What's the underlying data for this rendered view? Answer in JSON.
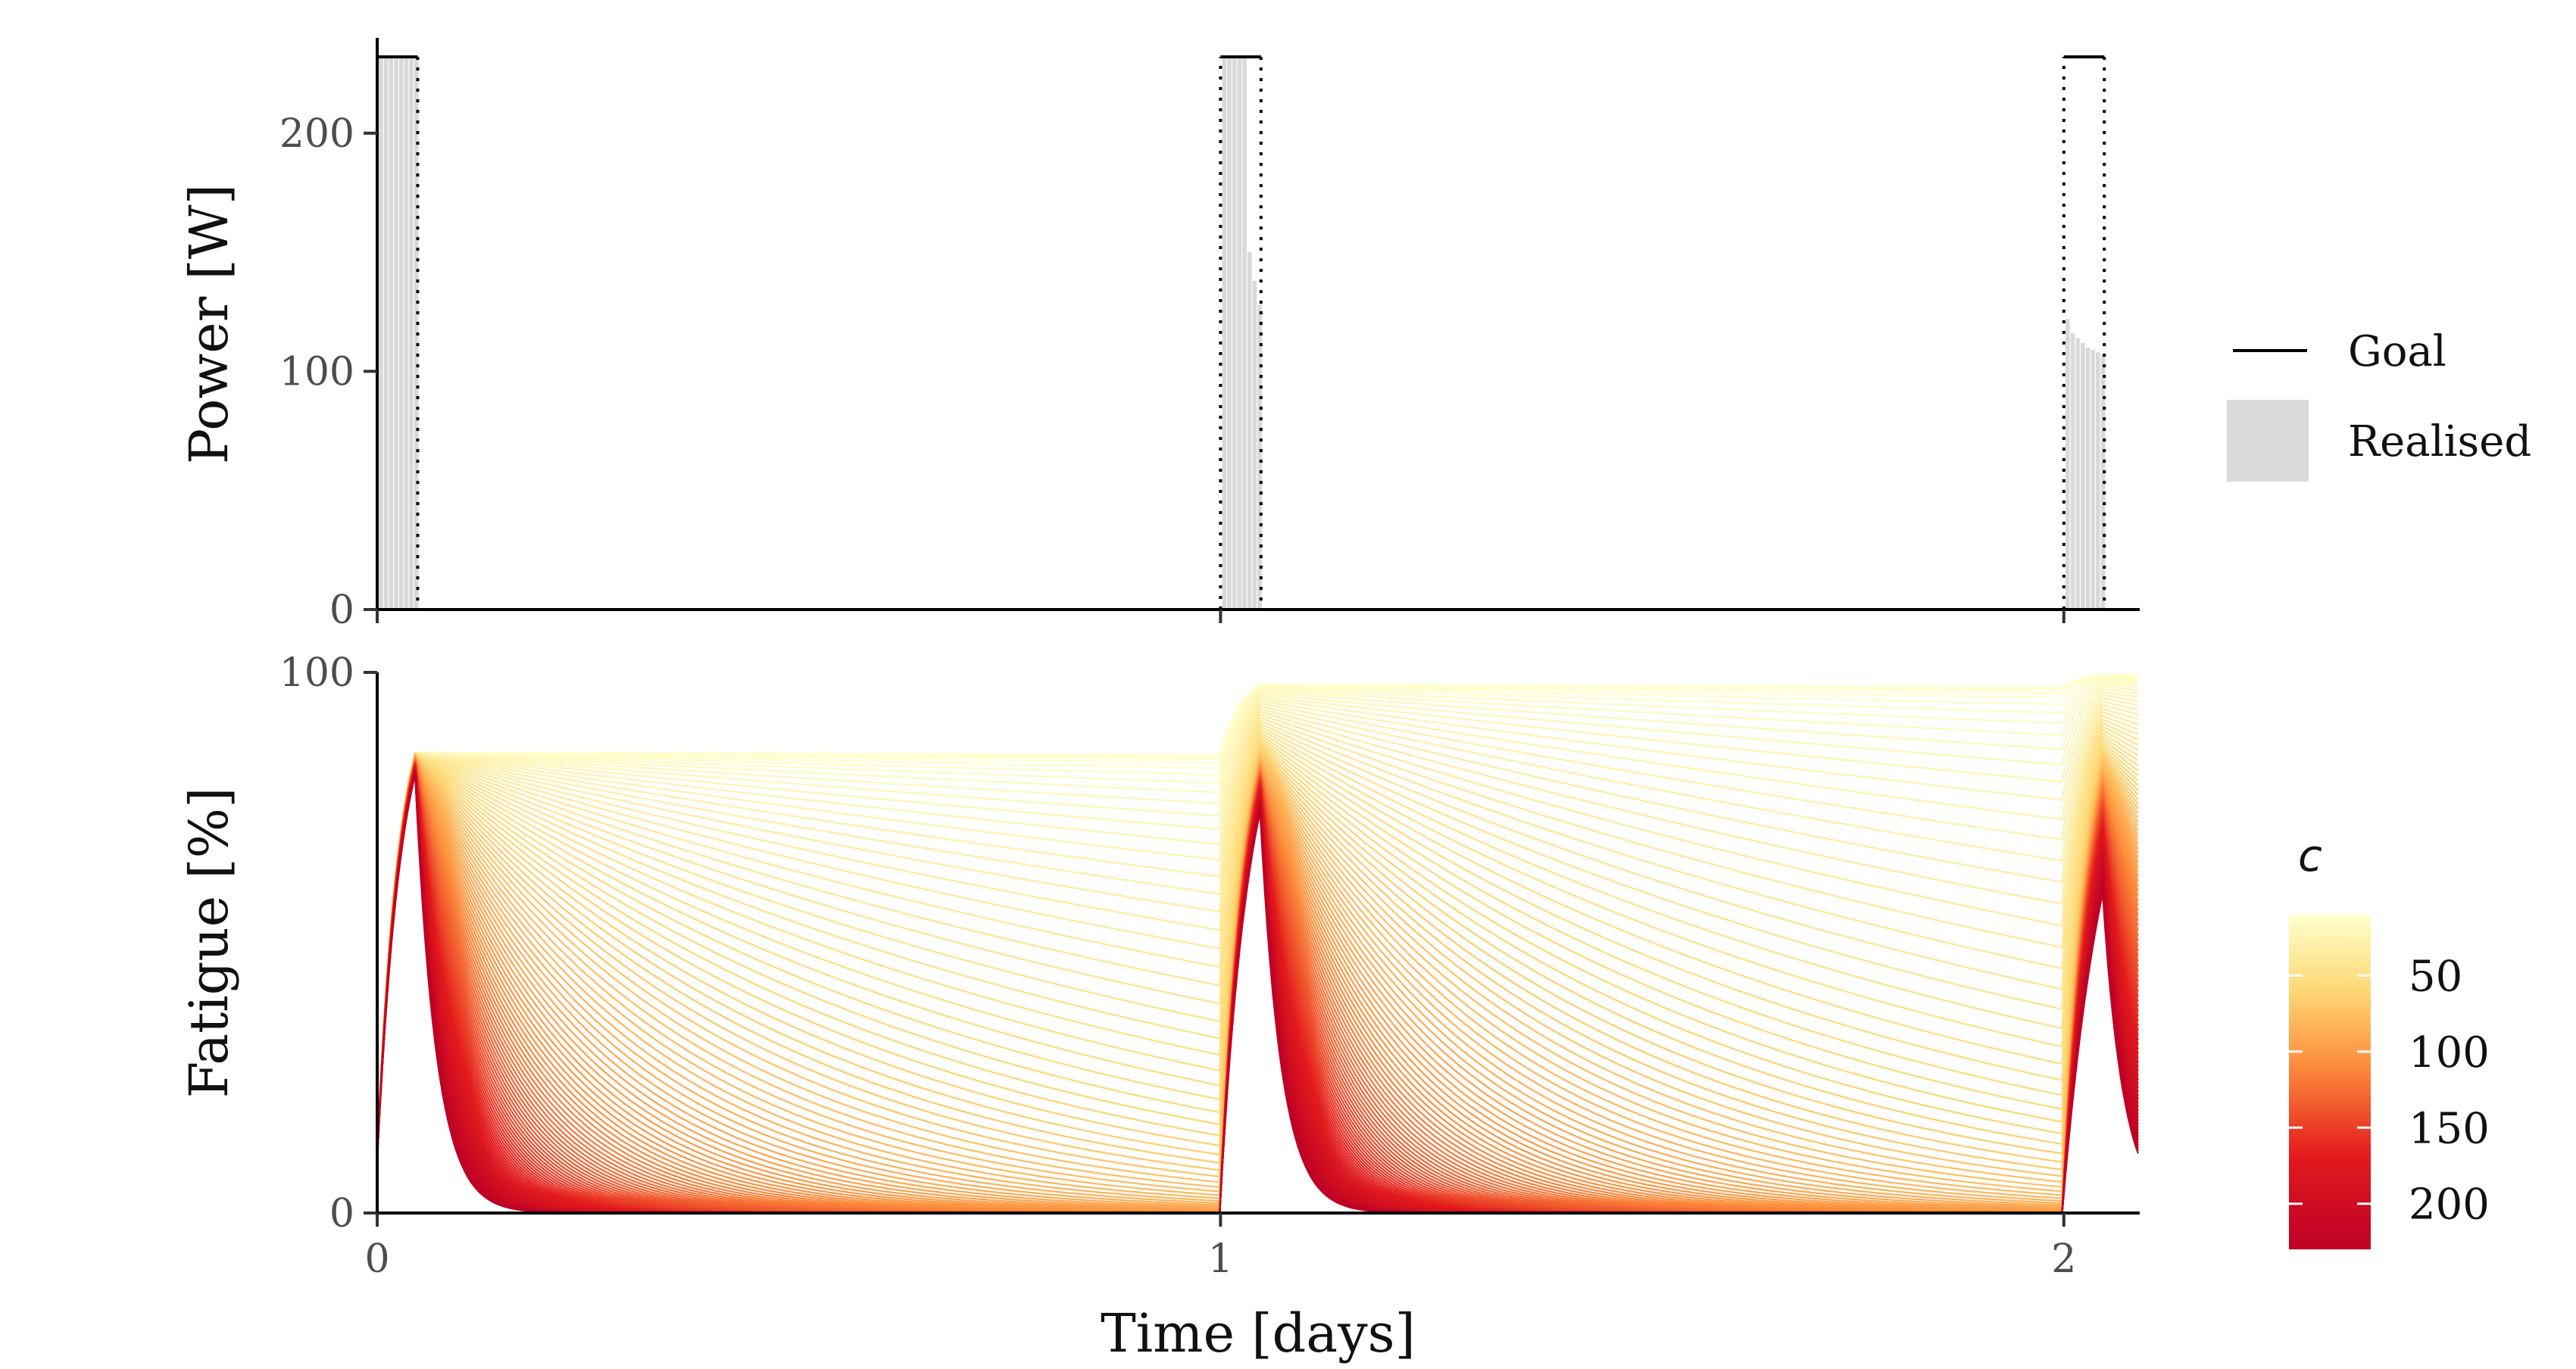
{
  "colors": {
    "goal": "#000000",
    "realised": "#d9d9d9",
    "palette_low": "#ffffcc",
    "palette_mid1": "#fed976",
    "palette_mid2": "#fd8d3c",
    "palette_mid3": "#e31a1c",
    "palette_high": "#bd0026"
  },
  "chart_data": [
    {
      "type": "bar",
      "ylabel": "Power [W]",
      "xlim": [
        0,
        2.09
      ],
      "ylim": [
        0,
        240
      ],
      "yticks": [
        0,
        100,
        200
      ],
      "xticks": [
        0,
        1,
        2
      ],
      "grid": false,
      "series": [
        {
          "name": "Goal",
          "kind": "step",
          "segments": [
            {
              "x_start": 0.0,
              "x_end": 0.048,
              "value": 232
            },
            {
              "x_start": 1.0,
              "x_end": 1.048,
              "value": 232
            },
            {
              "x_start": 2.0,
              "x_end": 2.048,
              "value": 232
            }
          ]
        },
        {
          "name": "Realised",
          "kind": "bars",
          "bars": [
            {
              "x": 0.002,
              "value": 232
            },
            {
              "x": 0.008,
              "value": 232
            },
            {
              "x": 0.014,
              "value": 232
            },
            {
              "x": 0.02,
              "value": 232
            },
            {
              "x": 0.026,
              "value": 232
            },
            {
              "x": 0.032,
              "value": 232
            },
            {
              "x": 0.038,
              "value": 232
            },
            {
              "x": 0.044,
              "value": 232
            },
            {
              "x": 1.002,
              "value": 232
            },
            {
              "x": 1.008,
              "value": 232
            },
            {
              "x": 1.014,
              "value": 232
            },
            {
              "x": 1.02,
              "value": 232
            },
            {
              "x": 1.026,
              "value": 232
            },
            {
              "x": 1.032,
              "value": 150
            },
            {
              "x": 1.038,
              "value": 138
            },
            {
              "x": 1.044,
              "value": 128
            },
            {
              "x": 2.002,
              "value": 122
            },
            {
              "x": 2.008,
              "value": 116
            },
            {
              "x": 2.014,
              "value": 114
            },
            {
              "x": 2.02,
              "value": 112
            },
            {
              "x": 2.026,
              "value": 110
            },
            {
              "x": 2.032,
              "value": 109
            },
            {
              "x": 2.038,
              "value": 108
            },
            {
              "x": 2.044,
              "value": 107
            }
          ]
        }
      ],
      "legend": {
        "position": "right",
        "items": [
          "Goal",
          "Realised"
        ]
      }
    },
    {
      "type": "line",
      "xlabel": "Time [days]",
      "ylabel": "Fatigue [%]",
      "xlim": [
        0,
        2.09
      ],
      "ylim": [
        0,
        100
      ],
      "xticks": [
        0,
        1,
        2
      ],
      "yticks": [
        0,
        100
      ],
      "grid": false,
      "parameter": {
        "name": "c",
        "min": 2,
        "max": 230,
        "count": 115
      },
      "colorbar": {
        "title": "c",
        "ticks": [
          50,
          100,
          150,
          200
        ],
        "range": [
          10,
          230
        ],
        "position": "right"
      }
    }
  ]
}
